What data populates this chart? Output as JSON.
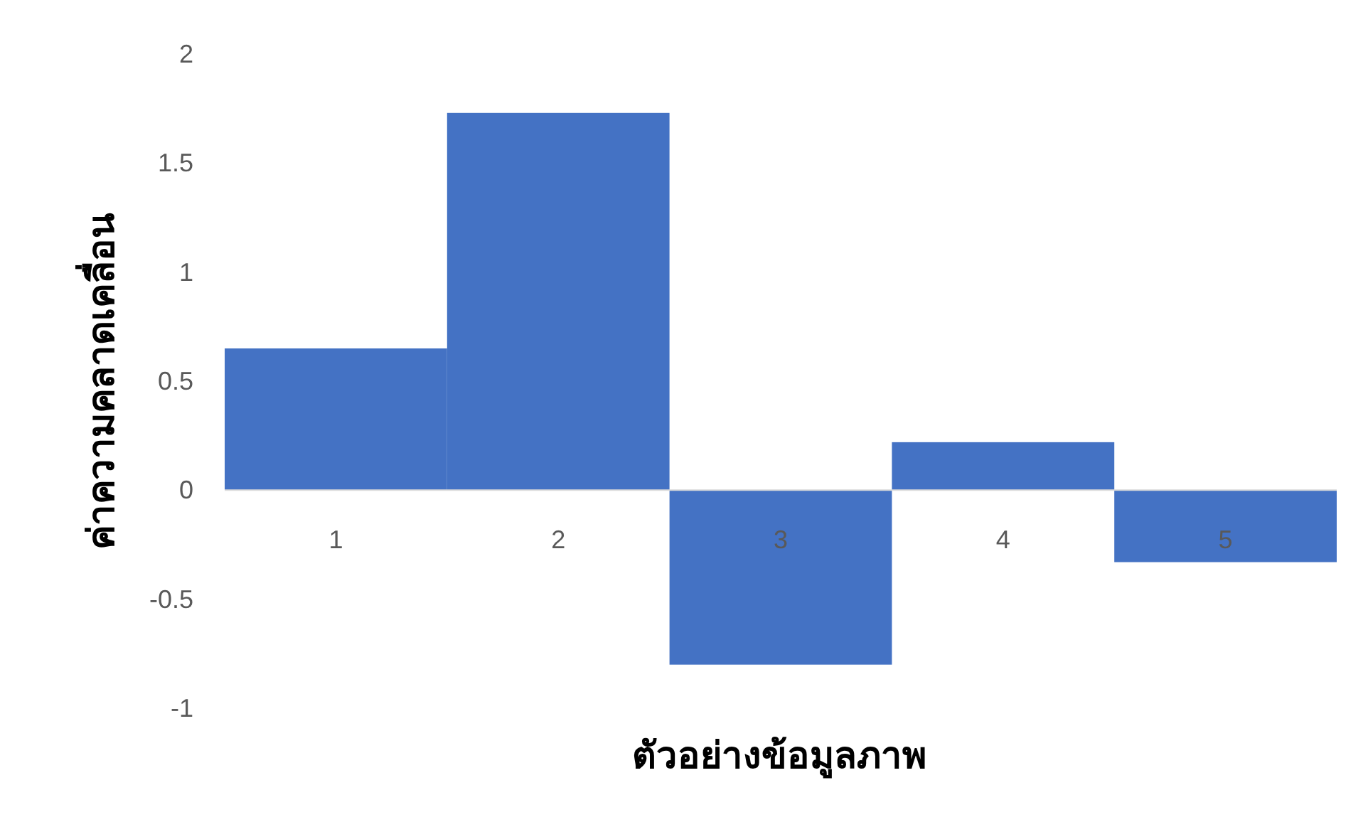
{
  "chart_data": {
    "type": "bar",
    "xlabel": "ตัวอย่างข้อมูลภาพ",
    "ylabel": "ค่าความคลาดเคลื่อน",
    "categories": [
      "1",
      "2",
      "3",
      "4",
      "5"
    ],
    "values": [
      0.65,
      1.73,
      -0.8,
      0.22,
      -0.33
    ],
    "color": "#4472c4",
    "ylim": [
      -1,
      2
    ],
    "yticks": [
      {
        "value": -1,
        "label": "-1"
      },
      {
        "value": -0.5,
        "label": "-0.5"
      },
      0,
      0.5,
      1,
      1.5,
      2
    ]
  }
}
